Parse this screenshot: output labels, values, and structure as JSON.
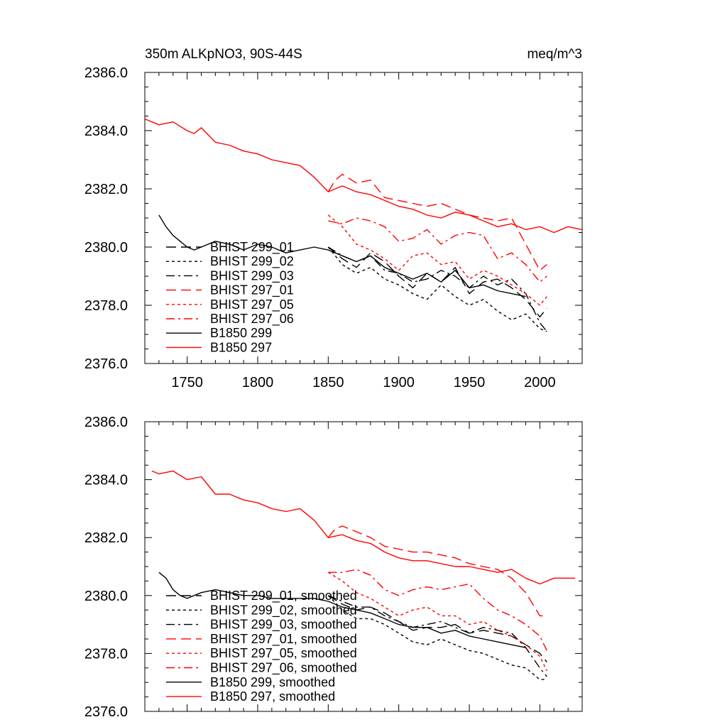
{
  "chart_data": [
    {
      "type": "line",
      "title": "350m ALKpNO3, 90S-44S",
      "units": "meq/m^3",
      "xlim": [
        1720,
        2030
      ],
      "ylim": [
        2376.0,
        2386.0
      ],
      "xticks": [
        1750,
        1800,
        1850,
        1900,
        1950,
        2000
      ],
      "xtick_labels": [
        "1750",
        "1800",
        "1850",
        "1900",
        "1950",
        "2000"
      ],
      "yticks": [
        2376.0,
        2378.0,
        2380.0,
        2382.0,
        2384.0,
        2386.0
      ],
      "ytick_labels": [
        "2376.0",
        "2378.0",
        "2380.0",
        "2382.0",
        "2384.0",
        "2386.0"
      ],
      "legend_position": "lower-left",
      "series": [
        {
          "name": "BHIST 299_01",
          "color": "#000000",
          "dash": "long-dash",
          "x": [
            1850,
            1860,
            1870,
            1880,
            1890,
            1900,
            1910,
            1920,
            1930,
            1940,
            1950,
            1960,
            1970,
            1980,
            1990,
            2000,
            2005
          ],
          "y": [
            2380.0,
            2379.6,
            2379.3,
            2379.8,
            2379.5,
            2379.0,
            2378.6,
            2379.1,
            2378.8,
            2379.3,
            2378.4,
            2378.8,
            2378.9,
            2378.6,
            2378.2,
            2377.6,
            2377.9
          ]
        },
        {
          "name": "BHIST 299_02",
          "color": "#000000",
          "dash": "short-dash",
          "x": [
            1850,
            1860,
            1870,
            1880,
            1890,
            1900,
            1910,
            1920,
            1930,
            1940,
            1950,
            1960,
            1970,
            1980,
            1990,
            2000,
            2005
          ],
          "y": [
            2380.0,
            2379.4,
            2379.1,
            2379.3,
            2378.9,
            2378.7,
            2378.4,
            2378.2,
            2378.7,
            2378.3,
            2378.0,
            2378.2,
            2377.8,
            2377.5,
            2377.7,
            2377.2,
            2377.1
          ]
        },
        {
          "name": "BHIST 299_03",
          "color": "#000000",
          "dash": "dash-dot",
          "x": [
            1850,
            1860,
            1870,
            1880,
            1890,
            1900,
            1910,
            1920,
            1930,
            1940,
            1950,
            1960,
            1970,
            1980,
            1990,
            2000,
            2005
          ],
          "y": [
            2380.0,
            2379.7,
            2379.5,
            2379.7,
            2379.2,
            2379.1,
            2378.8,
            2378.9,
            2379.2,
            2379.0,
            2378.6,
            2379.0,
            2378.7,
            2378.9,
            2378.4,
            2377.4,
            2377.1
          ]
        },
        {
          "name": "BHIST 297_01",
          "color": "#ff0000",
          "dash": "long-dash",
          "x": [
            1850,
            1855,
            1860,
            1870,
            1880,
            1890,
            1900,
            1910,
            1920,
            1930,
            1940,
            1950,
            1960,
            1970,
            1980,
            1990,
            2000,
            2005
          ],
          "y": [
            2381.9,
            2382.3,
            2382.5,
            2382.2,
            2382.3,
            2381.7,
            2381.6,
            2381.5,
            2381.4,
            2381.5,
            2381.3,
            2381.1,
            2381.0,
            2380.9,
            2381.0,
            2380.1,
            2379.2,
            2379.4
          ]
        },
        {
          "name": "BHIST 297_05",
          "color": "#ff0000",
          "dash": "short-dash",
          "x": [
            1850,
            1860,
            1870,
            1880,
            1890,
            1900,
            1910,
            1920,
            1930,
            1940,
            1950,
            1960,
            1970,
            1980,
            1990,
            2000,
            2005
          ],
          "y": [
            2381.1,
            2380.7,
            2380.1,
            2379.9,
            2379.6,
            2379.2,
            2379.7,
            2379.8,
            2379.4,
            2379.5,
            2378.9,
            2379.2,
            2379.0,
            2378.7,
            2378.4,
            2378.0,
            2378.3
          ]
        },
        {
          "name": "BHIST 297_06",
          "color": "#ff0000",
          "dash": "dash-dot",
          "x": [
            1850,
            1860,
            1870,
            1880,
            1890,
            1900,
            1910,
            1920,
            1930,
            1940,
            1950,
            1960,
            1970,
            1980,
            1990,
            2000,
            2005
          ],
          "y": [
            2380.9,
            2380.8,
            2381.0,
            2380.9,
            2380.7,
            2380.2,
            2380.3,
            2380.6,
            2380.1,
            2380.4,
            2380.5,
            2380.4,
            2379.6,
            2379.8,
            2379.4,
            2378.8,
            2379.0
          ]
        },
        {
          "name": "B1850 299",
          "color": "#000000",
          "dash": "solid",
          "x": [
            1730,
            1735,
            1740,
            1745,
            1750,
            1755,
            1760,
            1770,
            1780,
            1790,
            1800,
            1810,
            1820,
            1830,
            1840,
            1850,
            1860,
            1870,
            1880,
            1890,
            1900,
            1910,
            1920,
            1930,
            1940,
            1950,
            1960,
            1970,
            1980,
            1990
          ],
          "y": [
            2381.1,
            2380.7,
            2380.4,
            2380.2,
            2380.0,
            2379.9,
            2380.0,
            2380.2,
            2380.1,
            2379.9,
            2380.1,
            2380.0,
            2379.8,
            2379.9,
            2380.0,
            2379.9,
            2379.7,
            2379.5,
            2379.7,
            2379.3,
            2379.1,
            2378.9,
            2379.1,
            2378.8,
            2379.2,
            2378.6,
            2378.7,
            2378.5,
            2378.4,
            2378.3
          ]
        },
        {
          "name": "B1850 297",
          "color": "#ff0000",
          "dash": "solid",
          "x": [
            1720,
            1730,
            1740,
            1750,
            1755,
            1760,
            1770,
            1780,
            1790,
            1800,
            1810,
            1820,
            1830,
            1840,
            1850,
            1860,
            1870,
            1880,
            1890,
            1900,
            1910,
            1920,
            1930,
            1940,
            1950,
            1960,
            1970,
            1980,
            1990,
            2000,
            2010,
            2020,
            2030
          ],
          "y": [
            2384.4,
            2384.2,
            2384.3,
            2384.0,
            2383.9,
            2384.1,
            2383.6,
            2383.5,
            2383.3,
            2383.2,
            2383.0,
            2382.9,
            2382.8,
            2382.4,
            2381.9,
            2382.1,
            2381.9,
            2381.8,
            2381.6,
            2381.4,
            2381.3,
            2381.1,
            2381.0,
            2381.2,
            2381.1,
            2380.9,
            2380.7,
            2380.8,
            2380.6,
            2380.7,
            2380.5,
            2380.7,
            2380.6
          ]
        }
      ]
    },
    {
      "type": "line",
      "xlim": [
        1720,
        2030
      ],
      "ylim": [
        2376.0,
        2386.0
      ],
      "xticks": [
        1750,
        1800,
        1850,
        1900,
        1950,
        2000
      ],
      "yticks": [
        2376.0,
        2378.0,
        2380.0,
        2382.0,
        2384.0,
        2386.0
      ],
      "ytick_labels": [
        "2376.0",
        "2378.0",
        "2380.0",
        "2382.0",
        "2384.0",
        "2386.0"
      ],
      "legend_position": "lower-left",
      "series": [
        {
          "name": "BHIST 299_01, smoothed",
          "color": "#000000",
          "dash": "long-dash",
          "x": [
            1850,
            1860,
            1870,
            1880,
            1890,
            1900,
            1910,
            1920,
            1930,
            1940,
            1950,
            1960,
            1970,
            1980,
            1990,
            2000,
            2005
          ],
          "y": [
            2380.0,
            2379.7,
            2379.5,
            2379.6,
            2379.4,
            2379.1,
            2378.8,
            2378.9,
            2378.9,
            2379.0,
            2378.7,
            2378.8,
            2378.7,
            2378.6,
            2378.3,
            2378.0,
            2377.7
          ]
        },
        {
          "name": "BHIST 299_02, smoothed",
          "color": "#000000",
          "dash": "short-dash",
          "x": [
            1850,
            1860,
            1870,
            1880,
            1890,
            1900,
            1910,
            1920,
            1930,
            1940,
            1950,
            1960,
            1970,
            1980,
            1990,
            2000,
            2005
          ],
          "y": [
            2380.0,
            2379.5,
            2379.2,
            2379.2,
            2379.0,
            2378.7,
            2378.4,
            2378.3,
            2378.5,
            2378.3,
            2378.1,
            2378.0,
            2377.8,
            2377.6,
            2377.5,
            2377.1,
            2377.1
          ]
        },
        {
          "name": "BHIST 299_03, smoothed",
          "color": "#000000",
          "dash": "dash-dot",
          "x": [
            1850,
            1860,
            1870,
            1880,
            1890,
            1900,
            1910,
            1920,
            1930,
            1940,
            1950,
            1960,
            1970,
            1980,
            1990,
            2000,
            2005
          ],
          "y": [
            2380.0,
            2379.8,
            2379.6,
            2379.6,
            2379.3,
            2379.1,
            2378.9,
            2379.0,
            2379.1,
            2378.9,
            2378.7,
            2378.9,
            2378.8,
            2378.7,
            2378.2,
            2377.5,
            2377.2
          ]
        },
        {
          "name": "BHIST 297_01, smoothed",
          "color": "#ff0000",
          "dash": "long-dash",
          "x": [
            1850,
            1855,
            1860,
            1870,
            1880,
            1890,
            1900,
            1910,
            1920,
            1930,
            1940,
            1950,
            1960,
            1970,
            1980,
            1990,
            2000,
            2005
          ],
          "y": [
            2382.0,
            2382.3,
            2382.4,
            2382.2,
            2382.0,
            2381.7,
            2381.6,
            2381.5,
            2381.5,
            2381.4,
            2381.3,
            2381.1,
            2381.0,
            2380.9,
            2380.6,
            2380.1,
            2379.3,
            2379.3
          ]
        },
        {
          "name": "BHIST 297_05, smoothed",
          "color": "#ff0000",
          "dash": "short-dash",
          "x": [
            1850,
            1860,
            1870,
            1880,
            1890,
            1900,
            1910,
            1920,
            1930,
            1940,
            1950,
            1960,
            1970,
            1980,
            1990,
            2000,
            2005
          ],
          "y": [
            2380.8,
            2380.5,
            2380.1,
            2379.9,
            2379.6,
            2379.3,
            2379.5,
            2379.6,
            2379.3,
            2379.3,
            2379.0,
            2379.1,
            2378.8,
            2378.6,
            2378.3,
            2377.9,
            2377.4
          ]
        },
        {
          "name": "BHIST 297_06, smoothed",
          "color": "#ff0000",
          "dash": "dash-dot",
          "x": [
            1850,
            1860,
            1870,
            1880,
            1890,
            1900,
            1910,
            1920,
            1930,
            1940,
            1950,
            1960,
            1970,
            1980,
            1990,
            2000,
            2005
          ],
          "y": [
            2380.8,
            2380.8,
            2380.9,
            2380.7,
            2380.2,
            2380.0,
            2380.2,
            2380.3,
            2380.2,
            2380.3,
            2380.4,
            2379.9,
            2379.5,
            2379.3,
            2379.0,
            2378.6,
            2378.1
          ]
        },
        {
          "name": "B1850 299, smoothed",
          "color": "#000000",
          "dash": "solid",
          "x": [
            1730,
            1735,
            1740,
            1745,
            1750,
            1760,
            1770,
            1780,
            1790,
            1800,
            1810,
            1820,
            1830,
            1840,
            1850,
            1860,
            1870,
            1880,
            1890,
            1900,
            1910,
            1920,
            1930,
            1940,
            1950,
            1960,
            1970,
            1980,
            1990
          ],
          "y": [
            2380.8,
            2380.6,
            2380.2,
            2380.0,
            2379.9,
            2380.1,
            2380.2,
            2380.1,
            2380.0,
            2380.0,
            2379.9,
            2379.9,
            2379.9,
            2379.9,
            2379.8,
            2379.6,
            2379.5,
            2379.4,
            2379.2,
            2379.0,
            2378.9,
            2378.9,
            2378.7,
            2378.8,
            2378.6,
            2378.5,
            2378.4,
            2378.3,
            2378.2
          ]
        },
        {
          "name": "B1850 297, smoothed",
          "color": "#ff0000",
          "dash": "solid",
          "x": [
            1725,
            1730,
            1740,
            1750,
            1760,
            1770,
            1780,
            1790,
            1800,
            1810,
            1820,
            1830,
            1840,
            1850,
            1860,
            1870,
            1880,
            1890,
            1900,
            1910,
            1920,
            1930,
            1940,
            1950,
            1960,
            1970,
            1980,
            1990,
            2000,
            2010,
            2020,
            2025
          ],
          "y": [
            2384.3,
            2384.2,
            2384.3,
            2384.0,
            2384.1,
            2383.5,
            2383.5,
            2383.3,
            2383.2,
            2383.0,
            2382.9,
            2383.0,
            2382.6,
            2382.0,
            2382.1,
            2381.9,
            2381.8,
            2381.5,
            2381.3,
            2381.2,
            2381.2,
            2381.1,
            2381.0,
            2381.0,
            2380.9,
            2380.8,
            2380.9,
            2380.6,
            2380.4,
            2380.6,
            2380.6,
            2380.6
          ]
        }
      ]
    }
  ]
}
